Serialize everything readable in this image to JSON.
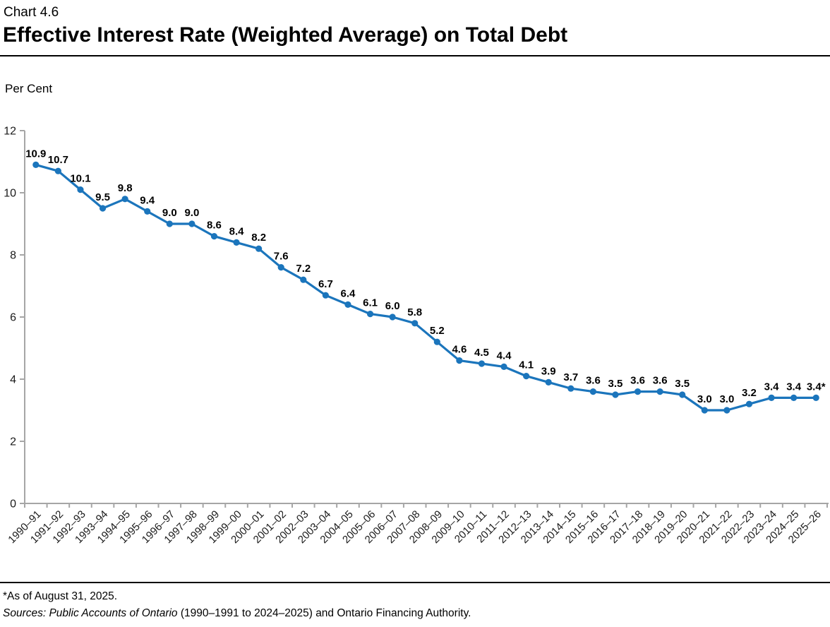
{
  "header": {
    "chart_number": "Chart 4.6",
    "title": "Effective Interest Rate (Weighted Average) on Total Debt"
  },
  "chart_data": {
    "type": "line",
    "title": "Effective Interest Rate (Weighted Average) on Total Debt",
    "ylabel": "Per Cent",
    "xlabel": "",
    "ylim": [
      0,
      12
    ],
    "yticks": [
      0,
      2,
      4,
      6,
      8,
      10,
      12
    ],
    "grid": false,
    "legend_position": "none",
    "line_color": "#1B75BC",
    "axis_color": "#A6A6A6",
    "categories": [
      "1990–91",
      "1991–92",
      "1992–93",
      "1993–94",
      "1994–95",
      "1995–96",
      "1996–97",
      "1997–98",
      "1998–99",
      "1999–00",
      "2000–01",
      "2001–02",
      "2002–03",
      "2003–04",
      "2004–05",
      "2005–06",
      "2006–07",
      "2007–08",
      "2008–09",
      "2009–10",
      "2010–11",
      "2011–12",
      "2012–13",
      "2013–14",
      "2014–15",
      "2015–16",
      "2016–17",
      "2017–18",
      "2018–19",
      "2019–20",
      "2020–21",
      "2021–22",
      "2022–23",
      "2023–24",
      "2024–25",
      "2025–26"
    ],
    "values": [
      10.9,
      10.7,
      10.1,
      9.5,
      9.8,
      9.4,
      9.0,
      9.0,
      8.6,
      8.4,
      8.2,
      7.6,
      7.2,
      6.7,
      6.4,
      6.1,
      6.0,
      5.8,
      5.2,
      4.6,
      4.5,
      4.4,
      4.1,
      3.9,
      3.7,
      3.6,
      3.5,
      3.6,
      3.6,
      3.5,
      3.0,
      3.0,
      3.2,
      3.4,
      3.4,
      3.4
    ],
    "point_labels": [
      "10.9",
      "10.7",
      "10.1",
      "9.5",
      "9.8",
      "9.4",
      "9.0",
      "9.0",
      "8.6",
      "8.4",
      "8.2",
      "7.6",
      "7.2",
      "6.7",
      "6.4",
      "6.1",
      "6.0",
      "5.8",
      "5.2",
      "4.6",
      "4.5",
      "4.4",
      "4.1",
      "3.9",
      "3.7",
      "3.6",
      "3.5",
      "3.6",
      "3.6",
      "3.5",
      "3.0",
      "3.0",
      "3.2",
      "3.4",
      "3.4",
      "3.4*"
    ]
  },
  "footnotes": {
    "asterisk_note": "*As of August 31, 2025.",
    "sources_italic": "Sources: Public Accounts of Ontario",
    "sources_regular": " (1990–1991 to 2024–2025) and Ontario Financing Authority."
  }
}
